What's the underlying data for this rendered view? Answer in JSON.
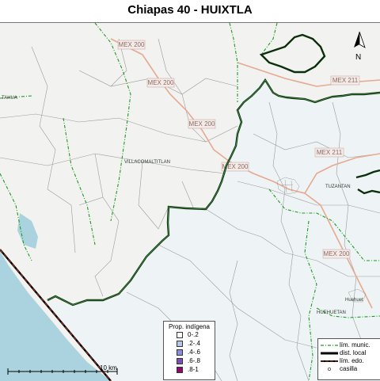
{
  "title": "Chiapas 40 - HUIXTLA",
  "roads": [
    {
      "label": "MEX 200"
    },
    {
      "label": "MEX 200"
    },
    {
      "label": "MEX 200"
    },
    {
      "label": "MEX 200"
    },
    {
      "label": "MEX 211"
    },
    {
      "label": "MEX 211"
    },
    {
      "label": "MEX 200"
    }
  ],
  "places": [
    "VILLACOMALTITLAN",
    "TUZANTAN",
    "HUEHUETAN",
    "Huehuet",
    "TAHUA"
  ],
  "north_label": "N",
  "scale_label": "10 km",
  "legend_prop": {
    "title": "Prop. indígena",
    "items": [
      {
        "label": "0-.2",
        "color": "#ffffff"
      },
      {
        "label": ".2-.4",
        "color": "#b3c6e6"
      },
      {
        "label": ".4-.6",
        "color": "#8c8fd6"
      },
      {
        "label": ".6-.8",
        "color": "#7c4fb0"
      },
      {
        "label": ".8-1",
        "color": "#8b0a6e"
      }
    ]
  },
  "legend_lines": {
    "items": [
      {
        "label": "lím. munic.",
        "icon": "dashed-green-line"
      },
      {
        "label": "dist. local",
        "icon": "thick-black-line"
      },
      {
        "label": "lím. edo.",
        "icon": "red-black-line"
      },
      {
        "label": "casilla",
        "icon": "small-circle"
      }
    ]
  },
  "colors": {
    "district_fill": "#eef4f6",
    "outside_fill": "#f2f2f0",
    "sea": "#aad3df",
    "municipal_line": "#1f9a1f",
    "district_line": "#0b2e0b",
    "road": "#e6a990"
  }
}
